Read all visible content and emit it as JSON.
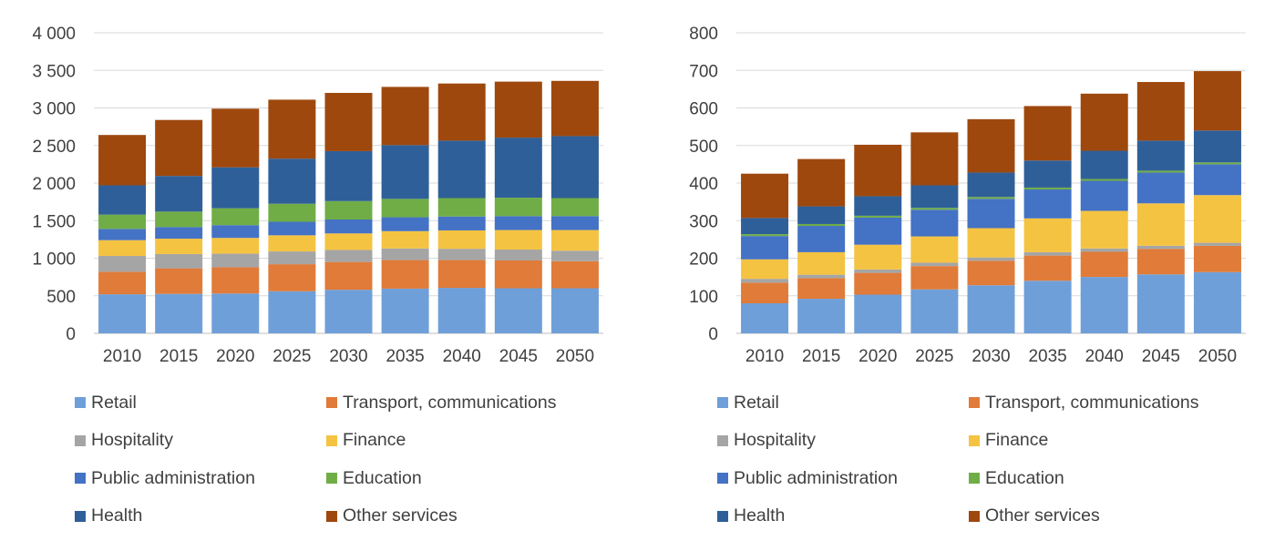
{
  "series_colors": {
    "Retail": "#6F9FD8",
    "Transport, communications": "#E07B39",
    "Hospitality": "#A5A5A5",
    "Finance": "#F5C342",
    "Public administration": "#4472C4",
    "Education": "#70AD47",
    "Health": "#2F5F98",
    "Other services": "#9E480E"
  },
  "chart_data": [
    {
      "type": "bar",
      "stacked": true,
      "categories": [
        "2010",
        "2015",
        "2020",
        "2025",
        "2030",
        "2035",
        "2040",
        "2045",
        "2050"
      ],
      "ylim": [
        0,
        4000
      ],
      "yticks": [
        "0",
        "500",
        "1 000",
        "1 500",
        "2 000",
        "2 500",
        "3 000",
        "3 500",
        "4 000"
      ],
      "grid": true,
      "legend_position": "bottom",
      "series": [
        {
          "name": "Retail",
          "values": [
            520,
            525,
            530,
            560,
            580,
            595,
            605,
            600,
            600
          ]
        },
        {
          "name": "Transport, communications",
          "values": [
            300,
            340,
            350,
            360,
            370,
            380,
            370,
            370,
            360
          ]
        },
        {
          "name": "Hospitality",
          "values": [
            210,
            190,
            180,
            170,
            160,
            155,
            150,
            145,
            140
          ]
        },
        {
          "name": "Finance",
          "values": [
            210,
            205,
            210,
            215,
            220,
            230,
            245,
            260,
            275
          ]
        },
        {
          "name": "Public administration",
          "values": [
            150,
            155,
            170,
            180,
            185,
            185,
            185,
            185,
            185
          ]
        },
        {
          "name": "Education",
          "values": [
            190,
            205,
            225,
            240,
            245,
            245,
            245,
            245,
            240
          ]
        },
        {
          "name": "Health",
          "values": [
            390,
            475,
            545,
            600,
            665,
            715,
            765,
            800,
            825
          ]
        },
        {
          "name": "Other services",
          "values": [
            670,
            745,
            780,
            785,
            775,
            775,
            760,
            745,
            735
          ]
        }
      ]
    },
    {
      "type": "bar",
      "stacked": true,
      "categories": [
        "2010",
        "2015",
        "2020",
        "2025",
        "2030",
        "2035",
        "2040",
        "2045",
        "2050"
      ],
      "ylim": [
        0,
        800
      ],
      "yticks": [
        "0",
        "100",
        "200",
        "300",
        "400",
        "500",
        "600",
        "700",
        "800"
      ],
      "grid": true,
      "legend_position": "bottom",
      "series": [
        {
          "name": "Retail",
          "values": [
            80,
            92,
            103,
            117,
            128,
            140,
            150,
            157,
            163
          ]
        },
        {
          "name": "Transport, communications",
          "values": [
            55,
            55,
            58,
            62,
            65,
            67,
            67,
            68,
            70
          ]
        },
        {
          "name": "Hospitality",
          "values": [
            10,
            9,
            9,
            9,
            9,
            9,
            9,
            8,
            8
          ]
        },
        {
          "name": "Finance",
          "values": [
            52,
            60,
            66,
            70,
            78,
            90,
            100,
            113,
            127
          ]
        },
        {
          "name": "Public administration",
          "values": [
            62,
            70,
            72,
            71,
            78,
            77,
            80,
            82,
            82
          ]
        },
        {
          "name": "Education",
          "values": [
            5,
            5,
            5,
            5,
            5,
            5,
            5,
            5,
            5
          ]
        },
        {
          "name": "Health",
          "values": [
            43,
            47,
            52,
            60,
            65,
            72,
            75,
            80,
            85
          ]
        },
        {
          "name": "Other services",
          "values": [
            118,
            126,
            137,
            141,
            142,
            145,
            152,
            156,
            158
          ]
        }
      ]
    }
  ]
}
